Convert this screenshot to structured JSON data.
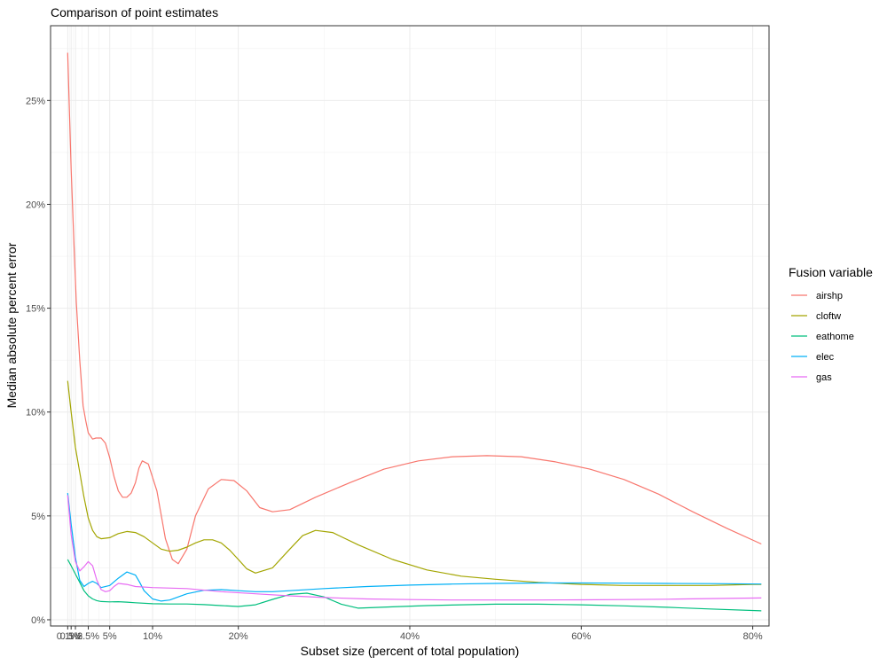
{
  "chart_data": {
    "type": "line",
    "title": "Comparison of point estimates",
    "xlabel": "Subset size (percent of total population)",
    "ylabel": "Median absolute percent error",
    "xlim": [
      -1.9,
      81.9
    ],
    "ylim": [
      -0.3,
      28.6
    ],
    "x_ticks": [
      {
        "value": 0.1,
        "label": "0.1%"
      },
      {
        "value": 0.5,
        "label": "0.5%"
      },
      {
        "value": 1,
        "label": "1%"
      },
      {
        "value": 2.5,
        "label": "2.5%"
      },
      {
        "value": 5,
        "label": "5%"
      },
      {
        "value": 10,
        "label": "10%"
      },
      {
        "value": 20,
        "label": "20%"
      },
      {
        "value": 40,
        "label": "40%"
      },
      {
        "value": 60,
        "label": "60%"
      },
      {
        "value": 80,
        "label": "80%"
      }
    ],
    "y_ticks": [
      {
        "value": 0,
        "label": "0%"
      },
      {
        "value": 5,
        "label": "5%"
      },
      {
        "value": 10,
        "label": "10%"
      },
      {
        "value": 15,
        "label": "15%"
      },
      {
        "value": 20,
        "label": "20%"
      },
      {
        "value": 25,
        "label": "25%"
      }
    ],
    "grid": true,
    "legend": {
      "title": "Fusion variable",
      "position": "right"
    },
    "series": [
      {
        "name": "airshp",
        "color": "#F8766D",
        "x": [
          0.1,
          0.5,
          0.8,
          1.1,
          1.5,
          1.9,
          2.2,
          2.5,
          3.0,
          3.4,
          4.0,
          4.5,
          5.0,
          5.5,
          6.0,
          6.5,
          7.0,
          7.5,
          8.0,
          8.4,
          8.8,
          9.5,
          10.5,
          11.5,
          12.3,
          13.0,
          14.0,
          15.0,
          16.5,
          18.0,
          19.5,
          21.0,
          22.5,
          24.0,
          26.0,
          29.0,
          33.0,
          37.0,
          41.0,
          45.0,
          49.0,
          53.0,
          57.0,
          61.0,
          65.0,
          69.0,
          73.0,
          77.0,
          81.0
        ],
        "y": [
          27.3,
          21.7,
          18.4,
          15.3,
          12.5,
          10.3,
          9.6,
          9.0,
          8.7,
          8.75,
          8.75,
          8.5,
          7.8,
          6.9,
          6.2,
          5.9,
          5.9,
          6.1,
          6.6,
          7.3,
          7.65,
          7.5,
          6.2,
          3.9,
          2.9,
          2.7,
          3.4,
          5.0,
          6.3,
          6.75,
          6.7,
          6.2,
          5.4,
          5.2,
          5.3,
          5.9,
          6.6,
          7.25,
          7.65,
          7.85,
          7.9,
          7.85,
          7.6,
          7.25,
          6.75,
          6.05,
          5.2,
          4.4,
          3.65
        ]
      },
      {
        "name": "cloftw",
        "color": "#A3A500",
        "x": [
          0.1,
          0.5,
          1.0,
          1.5,
          2.0,
          2.5,
          3.0,
          3.5,
          4.0,
          5.0,
          6.0,
          7.0,
          8.0,
          9.0,
          10.0,
          11.0,
          12.0,
          13.0,
          14.0,
          15.0,
          16.0,
          17.0,
          18.0,
          19.0,
          20.0,
          21.0,
          22.0,
          24.0,
          26.0,
          27.5,
          29.0,
          31.0,
          34.0,
          38.0,
          42.0,
          46.0,
          50.0,
          55.0,
          60.0,
          65.0,
          70.0,
          75.0,
          80.0,
          81.0
        ],
        "y": [
          11.5,
          10.0,
          8.3,
          7.1,
          5.9,
          4.9,
          4.3,
          4.0,
          3.9,
          3.95,
          4.15,
          4.25,
          4.2,
          4.0,
          3.7,
          3.4,
          3.3,
          3.35,
          3.5,
          3.7,
          3.85,
          3.85,
          3.7,
          3.35,
          2.9,
          2.45,
          2.25,
          2.5,
          3.4,
          4.05,
          4.3,
          4.2,
          3.6,
          2.9,
          2.4,
          2.1,
          1.95,
          1.8,
          1.7,
          1.65,
          1.65,
          1.65,
          1.7,
          1.7
        ]
      },
      {
        "name": "eathome",
        "color": "#00BF7D",
        "x": [
          0.1,
          0.5,
          1.0,
          1.5,
          2.0,
          2.5,
          3.0,
          3.5,
          4.0,
          5.0,
          6.0,
          7.0,
          8.0,
          10.0,
          12.0,
          14.0,
          16.0,
          18.0,
          20.0,
          22.0,
          24.0,
          26.0,
          28.0,
          30.0,
          32.0,
          34.0,
          38.0,
          42.0,
          46.0,
          50.0,
          55.0,
          60.0,
          65.0,
          70.0,
          75.0,
          81.0
        ],
        "y": [
          2.9,
          2.6,
          2.2,
          1.8,
          1.4,
          1.15,
          1.0,
          0.92,
          0.88,
          0.86,
          0.87,
          0.85,
          0.82,
          0.77,
          0.76,
          0.76,
          0.73,
          0.68,
          0.64,
          0.72,
          0.98,
          1.22,
          1.28,
          1.1,
          0.75,
          0.56,
          0.62,
          0.68,
          0.72,
          0.75,
          0.75,
          0.72,
          0.67,
          0.6,
          0.52,
          0.43
        ]
      },
      {
        "name": "elec",
        "color": "#00B0F6",
        "x": [
          0.1,
          0.5,
          1.0,
          1.5,
          2.0,
          2.5,
          3.0,
          3.5,
          4.0,
          5.0,
          6.0,
          7.0,
          8.0,
          8.5,
          9.0,
          10.0,
          11.0,
          12.0,
          13.0,
          14.0,
          16.0,
          18.0,
          20.0,
          22.0,
          24.0,
          26.0,
          30.0,
          35.0,
          40.0,
          45.0,
          50.0,
          55.0,
          60.0,
          65.0,
          70.0,
          75.0,
          81.0
        ],
        "y": [
          6.1,
          4.6,
          3.0,
          1.9,
          1.6,
          1.75,
          1.85,
          1.75,
          1.55,
          1.65,
          2.0,
          2.3,
          2.15,
          1.8,
          1.4,
          1.0,
          0.9,
          0.95,
          1.1,
          1.25,
          1.42,
          1.45,
          1.4,
          1.35,
          1.35,
          1.4,
          1.5,
          1.6,
          1.67,
          1.72,
          1.75,
          1.77,
          1.77,
          1.76,
          1.75,
          1.74,
          1.72
        ]
      },
      {
        "name": "gas",
        "color": "#E76BF3",
        "x": [
          0.1,
          0.5,
          1.0,
          1.5,
          2.0,
          2.5,
          3.0,
          3.5,
          4.0,
          4.5,
          5.0,
          5.5,
          6.0,
          7.0,
          8.0,
          10.0,
          14.0,
          18.0,
          22.0,
          26.0,
          30.0,
          35.0,
          40.0,
          45.0,
          50.0,
          55.0,
          60.0,
          65.0,
          70.0,
          75.0,
          81.0
        ],
        "y": [
          6.0,
          4.1,
          2.8,
          2.35,
          2.55,
          2.8,
          2.6,
          1.9,
          1.45,
          1.35,
          1.4,
          1.6,
          1.75,
          1.7,
          1.6,
          1.55,
          1.5,
          1.35,
          1.25,
          1.15,
          1.07,
          1.0,
          0.97,
          0.95,
          0.95,
          0.95,
          0.96,
          0.97,
          0.99,
          1.02,
          1.05
        ]
      }
    ]
  }
}
